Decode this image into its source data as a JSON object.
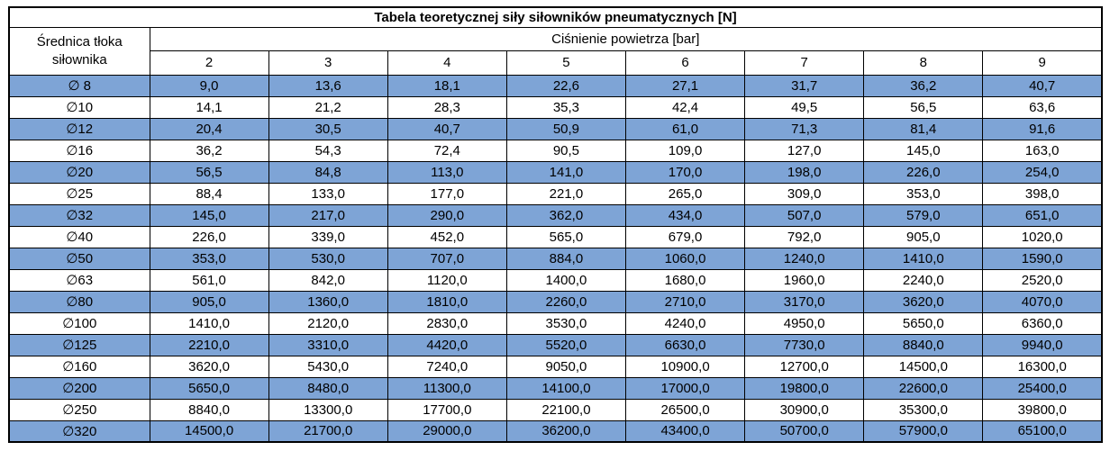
{
  "colors": {
    "highlight_row": "#7EA4D6",
    "border": "#000000",
    "text": "#000000",
    "background": "#FFFFFF"
  },
  "chart_data": {
    "type": "table",
    "title": "Tabela teoretycznej siły siłowników pneumatycznych [N]",
    "row_header": "Średnica tłoka siłownika",
    "column_group_header": "Ciśnienie powietrza [bar]",
    "pressure_bar": [
      2,
      3,
      4,
      5,
      6,
      7,
      8,
      9
    ],
    "value_unit": "N",
    "decimal_separator": ",",
    "layout": {
      "striped": true,
      "highlighted_rows": "odd",
      "grid": true
    },
    "rows": [
      {
        "label": "∅ 8",
        "diameter_mm": 8,
        "values": [
          9.0,
          13.6,
          18.1,
          22.6,
          27.1,
          31.7,
          36.2,
          40.7
        ]
      },
      {
        "label": "∅10",
        "diameter_mm": 10,
        "values": [
          14.1,
          21.2,
          28.3,
          35.3,
          42.4,
          49.5,
          56.5,
          63.6
        ]
      },
      {
        "label": "∅12",
        "diameter_mm": 12,
        "values": [
          20.4,
          30.5,
          40.7,
          50.9,
          61.0,
          71.3,
          81.4,
          91.6
        ]
      },
      {
        "label": "∅16",
        "diameter_mm": 16,
        "values": [
          36.2,
          54.3,
          72.4,
          90.5,
          109.0,
          127.0,
          145.0,
          163.0
        ]
      },
      {
        "label": "∅20",
        "diameter_mm": 20,
        "values": [
          56.5,
          84.8,
          113.0,
          141.0,
          170.0,
          198.0,
          226.0,
          254.0
        ]
      },
      {
        "label": "∅25",
        "diameter_mm": 25,
        "values": [
          88.4,
          133.0,
          177.0,
          221.0,
          265.0,
          309.0,
          353.0,
          398.0
        ]
      },
      {
        "label": "∅32",
        "diameter_mm": 32,
        "values": [
          145.0,
          217.0,
          290.0,
          362.0,
          434.0,
          507.0,
          579.0,
          651.0
        ]
      },
      {
        "label": "∅40",
        "diameter_mm": 40,
        "values": [
          226.0,
          339.0,
          452.0,
          565.0,
          679.0,
          792.0,
          905.0,
          1020.0
        ]
      },
      {
        "label": "∅50",
        "diameter_mm": 50,
        "values": [
          353.0,
          530.0,
          707.0,
          884.0,
          1060.0,
          1240.0,
          1410.0,
          1590.0
        ]
      },
      {
        "label": "∅63",
        "diameter_mm": 63,
        "values": [
          561.0,
          842.0,
          1120.0,
          1400.0,
          1680.0,
          1960.0,
          2240.0,
          2520.0
        ]
      },
      {
        "label": "∅80",
        "diameter_mm": 80,
        "values": [
          905.0,
          1360.0,
          1810.0,
          2260.0,
          2710.0,
          3170.0,
          3620.0,
          4070.0
        ]
      },
      {
        "label": "∅100",
        "diameter_mm": 100,
        "values": [
          1410.0,
          2120.0,
          2830.0,
          3530.0,
          4240.0,
          4950.0,
          5650.0,
          6360.0
        ]
      },
      {
        "label": "∅125",
        "diameter_mm": 125,
        "values": [
          2210.0,
          3310.0,
          4420.0,
          5520.0,
          6630.0,
          7730.0,
          8840.0,
          9940.0
        ]
      },
      {
        "label": "∅160",
        "diameter_mm": 160,
        "values": [
          3620.0,
          5430.0,
          7240.0,
          9050.0,
          10900.0,
          12700.0,
          14500.0,
          16300.0
        ]
      },
      {
        "label": "∅200",
        "diameter_mm": 200,
        "values": [
          5650.0,
          8480.0,
          11300.0,
          14100.0,
          17000.0,
          19800.0,
          22600.0,
          25400.0
        ]
      },
      {
        "label": "∅250",
        "diameter_mm": 250,
        "values": [
          8840.0,
          13300.0,
          17700.0,
          22100.0,
          26500.0,
          30900.0,
          35300.0,
          39800.0
        ]
      },
      {
        "label": "∅320",
        "diameter_mm": 320,
        "values": [
          14500.0,
          21700.0,
          29000.0,
          36200.0,
          43400.0,
          50700.0,
          57900.0,
          65100.0
        ]
      }
    ]
  }
}
